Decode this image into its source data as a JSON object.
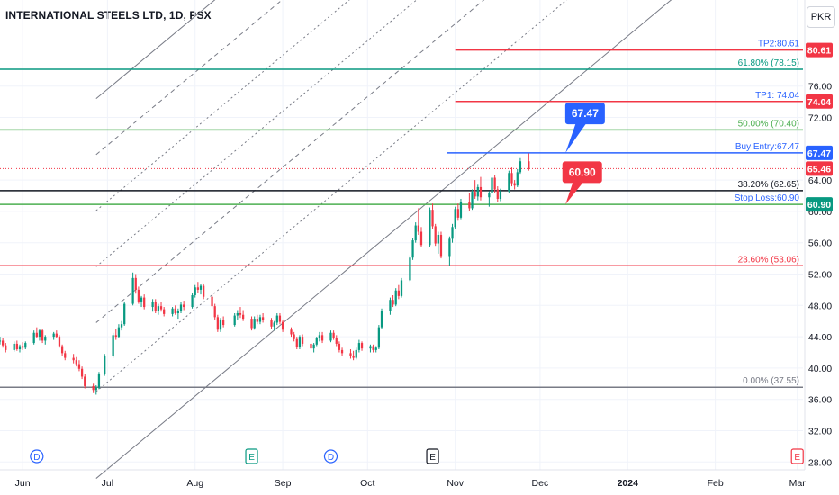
{
  "header": {
    "symbol_title": "INTERNATIONAL STEELS LTD, 1D, PSX",
    "currency": "PKR"
  },
  "chart_data": {
    "type": "candlestick",
    "symbol": "INTERNATIONAL STEELS LTD",
    "interval": "1D",
    "exchange": "PSX",
    "currency": "PKR",
    "y_axis": {
      "ticks": [
        28.0,
        32.0,
        36.0,
        40.0,
        44.0,
        48.0,
        52.0,
        56.0,
        60.0,
        64.0,
        72.0,
        76.0
      ],
      "range": [
        27.0,
        87.0
      ]
    },
    "x_axis": {
      "range": [
        "2023-05-24",
        "2024-03-03"
      ],
      "ticks": [
        {
          "label": "Jun",
          "date": "2023-06-01"
        },
        {
          "label": "Jul",
          "date": "2023-07-01"
        },
        {
          "label": "Aug",
          "date": "2023-08-01"
        },
        {
          "label": "Sep",
          "date": "2023-09-01"
        },
        {
          "label": "Oct",
          "date": "2023-10-01"
        },
        {
          "label": "Nov",
          "date": "2023-11-01"
        },
        {
          "label": "Dec",
          "date": "2023-12-01"
        },
        {
          "label": "2024",
          "date": "2024-01-01"
        },
        {
          "label": "Feb",
          "date": "2024-02-01"
        },
        {
          "label": "Mar",
          "date": "2024-03-01"
        }
      ]
    },
    "colors": {
      "up": "#089981",
      "down": "#f23645",
      "blue": "#2962ff",
      "fib_green": "#4caf50",
      "fib_teal": "#089981",
      "dark": "#131722",
      "gray": "#787b86"
    },
    "horizontal_levels": [
      {
        "price": 80.61,
        "label": "TP2:80.61",
        "label_color": "#2962ff",
        "line_color": "#f23645",
        "badge": "80.61",
        "badge_color": "#f23645",
        "start": "2023-11-01"
      },
      {
        "price": 78.15,
        "label": "61.80% (78.15)",
        "label_color": "#089981",
        "line_color": "#089981",
        "start": "2023-05-24"
      },
      {
        "price": 74.04,
        "label": "TP1: 74.04",
        "label_color": "#2962ff",
        "line_color": "#f23645",
        "badge": "74.04",
        "badge_color": "#f23645",
        "start": "2023-11-01"
      },
      {
        "price": 70.4,
        "label": "50.00% (70.40)",
        "label_color": "#4caf50",
        "line_color": "#4caf50",
        "start": "2023-05-24"
      },
      {
        "price": 67.47,
        "label": "Buy Entry:67.47",
        "label_color": "#2962ff",
        "line_color": "#2962ff",
        "badge": "67.47",
        "badge_color": "#2962ff",
        "start": "2023-10-29"
      },
      {
        "price": 65.46,
        "label": "",
        "label_color": "#f23645",
        "line_color": "#f23645",
        "dotted": true,
        "badge": "65.46",
        "badge_color": "#f23645",
        "start": "2023-05-24"
      },
      {
        "price": 62.65,
        "label": "38.20% (62.65)",
        "label_color": "#131722",
        "line_color": "#131722",
        "start": "2023-05-24"
      },
      {
        "price": 60.9,
        "label": "Stop Loss:60.90",
        "label_color": "#2962ff",
        "line_color": "#4caf50",
        "badge": "60.90",
        "badge_color": "#089981",
        "start": "2023-05-24"
      },
      {
        "price": 53.06,
        "label": "23.60% (53.06)",
        "label_color": "#f23645",
        "line_color": "#f23645",
        "start": "2023-05-24"
      },
      {
        "price": 37.55,
        "label": "0.00% (37.55)",
        "label_color": "#787b86",
        "line_color": "#787b86",
        "start": "2023-05-24"
      }
    ],
    "callouts": [
      {
        "text": "67.47",
        "color": "#2962ff",
        "anchor_date": "2023-12-10",
        "anchor_price": 67.47,
        "box_date": "2023-12-15",
        "box_price": 72.5
      },
      {
        "text": "60.90",
        "color": "#f23645",
        "anchor_date": "2023-12-10",
        "anchor_price": 60.9,
        "box_date": "2023-12-14",
        "box_price": 65.0
      }
    ],
    "channel": {
      "start": {
        "date": "2023-06-27",
        "price": 37.0
      },
      "end_date": "2024-03-03",
      "slope_per_day": 0.3005,
      "lines": [
        {
          "offset": 37.4,
          "style": "solid"
        },
        {
          "offset": 30.25,
          "style": "dashed"
        },
        {
          "offset": 23.1,
          "style": "dotted"
        },
        {
          "offset": 15.95,
          "style": "dotted"
        },
        {
          "offset": 8.8,
          "style": "dashed"
        },
        {
          "offset": 0.0,
          "style": "dotted"
        },
        {
          "offset": -11.1,
          "style": "solid"
        }
      ]
    },
    "events": [
      {
        "type": "D",
        "date": "2023-06-06",
        "color": "#2962ff"
      },
      {
        "type": "E",
        "date": "2023-08-21",
        "color": "#089981"
      },
      {
        "type": "D",
        "date": "2023-09-18",
        "color": "#2962ff"
      },
      {
        "type": "E",
        "date": "2023-10-24",
        "color": "#131722"
      },
      {
        "type": "E",
        "date": "2024-03-01",
        "color": "#f23645"
      }
    ],
    "ohlc": [
      [
        "2023-05-24",
        43.5,
        44.0,
        43.0,
        43.5
      ],
      [
        "2023-05-25",
        43.5,
        43.8,
        42.6,
        42.9
      ],
      [
        "2023-05-26",
        42.9,
        43.2,
        42.0,
        42.3
      ],
      [
        "2023-05-29",
        42.3,
        43.4,
        42.1,
        43.1
      ],
      [
        "2023-05-30",
        43.1,
        43.5,
        42.2,
        42.4
      ],
      [
        "2023-05-31",
        42.4,
        43.0,
        42.0,
        42.8
      ],
      [
        "2023-06-01",
        42.8,
        43.3,
        42.3,
        42.6
      ],
      [
        "2023-06-02",
        42.6,
        43.4,
        42.4,
        43.2
      ],
      [
        "2023-06-05",
        43.2,
        44.8,
        43.0,
        44.5
      ],
      [
        "2023-06-06",
        44.5,
        45.2,
        43.8,
        44.0
      ],
      [
        "2023-06-07",
        44.0,
        45.0,
        43.5,
        44.8
      ],
      [
        "2023-06-08",
        44.8,
        45.0,
        43.2,
        43.5
      ],
      [
        "2023-06-09",
        43.5,
        44.2,
        43.0,
        44.0
      ],
      [
        "2023-06-12",
        44.0,
        44.6,
        43.6,
        44.4
      ],
      [
        "2023-06-13",
        44.4,
        44.8,
        43.8,
        44.0
      ],
      [
        "2023-06-14",
        44.0,
        44.2,
        42.6,
        42.8
      ],
      [
        "2023-06-15",
        42.8,
        43.0,
        41.6,
        41.9
      ],
      [
        "2023-06-16",
        41.9,
        42.2,
        41.0,
        41.3
      ],
      [
        "2023-06-19",
        41.3,
        41.8,
        40.6,
        41.0
      ],
      [
        "2023-06-20",
        41.0,
        41.4,
        40.2,
        40.5
      ],
      [
        "2023-06-21",
        40.5,
        41.0,
        39.6,
        39.9
      ],
      [
        "2023-06-22",
        39.9,
        40.2,
        38.6,
        38.9
      ],
      [
        "2023-06-23",
        38.9,
        39.2,
        37.4,
        37.7
      ],
      [
        "2023-06-26",
        37.7,
        38.0,
        36.8,
        37.2
      ],
      [
        "2023-06-27",
        37.2,
        37.8,
        36.6,
        37.5
      ],
      [
        "2023-06-28",
        37.5,
        39.5,
        37.3,
        39.2
      ],
      [
        "2023-06-30",
        39.2,
        41.8,
        39.0,
        41.5
      ],
      [
        "2023-07-03",
        41.5,
        44.5,
        41.3,
        44.2
      ],
      [
        "2023-07-04",
        44.2,
        45.0,
        43.6,
        44.0
      ],
      [
        "2023-07-05",
        44.0,
        45.6,
        43.8,
        45.2
      ],
      [
        "2023-07-06",
        45.2,
        46.0,
        44.8,
        45.6
      ],
      [
        "2023-07-07",
        45.6,
        48.5,
        45.4,
        48.2
      ],
      [
        "2023-07-10",
        48.2,
        52.2,
        48.0,
        51.5
      ],
      [
        "2023-07-11",
        51.5,
        52.0,
        49.5,
        50.0
      ],
      [
        "2023-07-12",
        50.0,
        50.4,
        48.2,
        48.5
      ],
      [
        "2023-07-13",
        48.5,
        49.2,
        47.8,
        49.0
      ],
      [
        "2023-07-14",
        49.0,
        49.4,
        47.5,
        47.8
      ],
      [
        "2023-07-17",
        47.8,
        48.8,
        47.2,
        48.4
      ],
      [
        "2023-07-18",
        48.4,
        48.8,
        47.0,
        47.3
      ],
      [
        "2023-07-19",
        47.3,
        48.2,
        46.8,
        47.9
      ],
      [
        "2023-07-20",
        47.9,
        48.4,
        47.2,
        47.5
      ],
      [
        "2023-07-21",
        47.5,
        47.8,
        46.6,
        46.9
      ],
      [
        "2023-07-24",
        46.9,
        47.8,
        46.6,
        47.6
      ],
      [
        "2023-07-25",
        47.6,
        48.0,
        46.8,
        47.0
      ],
      [
        "2023-07-26",
        47.0,
        47.6,
        46.3,
        47.3
      ],
      [
        "2023-07-27",
        47.3,
        48.4,
        47.0,
        48.1
      ],
      [
        "2023-07-28",
        48.1,
        48.6,
        47.4,
        47.8
      ],
      [
        "2023-07-31",
        47.8,
        49.6,
        47.6,
        49.3
      ],
      [
        "2023-08-01",
        49.3,
        50.6,
        49.0,
        50.3
      ],
      [
        "2023-08-02",
        50.3,
        51.0,
        49.6,
        50.0
      ],
      [
        "2023-08-03",
        50.0,
        50.8,
        49.4,
        50.5
      ],
      [
        "2023-08-04",
        50.5,
        50.8,
        48.8,
        49.1
      ],
      [
        "2023-08-07",
        49.1,
        49.4,
        47.6,
        47.9
      ],
      [
        "2023-08-08",
        47.9,
        48.2,
        46.2,
        46.5
      ],
      [
        "2023-08-09",
        46.5,
        46.8,
        44.6,
        44.9
      ],
      [
        "2023-08-10",
        44.9,
        46.4,
        44.6,
        46.1
      ],
      [
        "2023-08-11",
        46.1,
        46.6,
        45.2,
        45.5
      ],
      [
        "2023-08-15",
        45.5,
        47.0,
        45.3,
        46.7
      ],
      [
        "2023-08-16",
        46.7,
        47.4,
        46.2,
        47.0
      ],
      [
        "2023-08-17",
        47.0,
        47.8,
        46.4,
        46.8
      ],
      [
        "2023-08-18",
        46.8,
        47.4,
        46.0,
        46.3
      ],
      [
        "2023-08-21",
        46.3,
        46.6,
        44.8,
        45.1
      ],
      [
        "2023-08-22",
        45.1,
        46.6,
        44.9,
        46.3
      ],
      [
        "2023-08-23",
        46.3,
        46.8,
        45.6,
        45.9
      ],
      [
        "2023-08-24",
        45.9,
        46.8,
        45.6,
        46.5
      ],
      [
        "2023-08-25",
        46.5,
        47.0,
        45.8,
        46.1
      ],
      [
        "2023-08-28",
        46.1,
        46.4,
        45.0,
        45.3
      ],
      [
        "2023-08-29",
        45.3,
        46.0,
        44.8,
        45.8
      ],
      [
        "2023-08-30",
        45.8,
        47.0,
        45.5,
        46.7
      ],
      [
        "2023-08-31",
        46.7,
        47.0,
        45.6,
        45.9
      ],
      [
        "2023-09-01",
        45.9,
        46.2,
        44.6,
        44.9
      ],
      [
        "2023-09-04",
        44.9,
        45.2,
        44.0,
        44.3
      ],
      [
        "2023-09-05",
        44.3,
        44.6,
        43.4,
        43.7
      ],
      [
        "2023-09-06",
        43.7,
        44.0,
        42.4,
        42.7
      ],
      [
        "2023-09-07",
        42.7,
        44.2,
        42.4,
        44.0
      ],
      [
        "2023-09-08",
        44.0,
        44.3,
        42.8,
        43.1
      ],
      [
        "2023-09-11",
        43.1,
        43.4,
        42.2,
        42.5
      ],
      [
        "2023-09-12",
        42.5,
        43.2,
        42.0,
        43.0
      ],
      [
        "2023-09-13",
        43.0,
        44.0,
        42.8,
        43.8
      ],
      [
        "2023-09-14",
        43.8,
        44.6,
        43.4,
        44.2
      ],
      [
        "2023-09-15",
        44.2,
        44.6,
        43.2,
        43.5
      ],
      [
        "2023-09-18",
        43.5,
        44.8,
        43.3,
        44.5
      ],
      [
        "2023-09-19",
        44.5,
        44.8,
        43.6,
        43.9
      ],
      [
        "2023-09-20",
        43.9,
        44.2,
        42.8,
        43.1
      ],
      [
        "2023-09-21",
        43.1,
        43.4,
        42.0,
        42.3
      ],
      [
        "2023-09-22",
        42.3,
        42.6,
        41.6,
        41.9
      ],
      [
        "2023-09-25",
        41.9,
        42.4,
        41.2,
        41.6
      ],
      [
        "2023-09-26",
        41.6,
        42.2,
        41.0,
        41.3
      ],
      [
        "2023-09-27",
        41.3,
        42.6,
        41.1,
        42.3
      ],
      [
        "2023-09-28",
        42.3,
        43.6,
        42.0,
        43.2
      ],
      [
        "2023-09-29",
        43.2,
        43.4,
        42.2,
        42.5
      ],
      [
        "2023-10-02",
        42.5,
        43.0,
        42.0,
        42.8
      ],
      [
        "2023-10-03",
        42.8,
        43.0,
        42.0,
        42.3
      ],
      [
        "2023-10-04",
        42.3,
        42.8,
        42.0,
        42.6
      ],
      [
        "2023-10-05",
        42.6,
        45.5,
        42.4,
        45.2
      ],
      [
        "2023-10-06",
        45.2,
        47.6,
        45.0,
        47.3
      ],
      [
        "2023-10-09",
        47.3,
        49.0,
        46.8,
        48.7
      ],
      [
        "2023-10-10",
        48.7,
        49.3,
        47.8,
        48.1
      ],
      [
        "2023-10-11",
        48.1,
        50.2,
        47.9,
        49.9
      ],
      [
        "2023-10-12",
        49.9,
        50.6,
        48.8,
        49.2
      ],
      [
        "2023-10-13",
        49.2,
        51.5,
        49.0,
        51.2
      ],
      [
        "2023-10-16",
        51.2,
        54.4,
        51.0,
        54.1
      ],
      [
        "2023-10-17",
        54.1,
        56.6,
        53.8,
        56.3
      ],
      [
        "2023-10-18",
        56.3,
        58.6,
        56.0,
        58.2
      ],
      [
        "2023-10-19",
        58.2,
        60.4,
        57.0,
        57.4
      ],
      [
        "2023-10-20",
        57.4,
        58.0,
        55.4,
        55.7
      ],
      [
        "2023-10-23",
        55.7,
        60.5,
        55.4,
        60.2
      ],
      [
        "2023-10-24",
        60.2,
        61.0,
        57.8,
        58.1
      ],
      [
        "2023-10-25",
        58.1,
        58.4,
        55.6,
        55.9
      ],
      [
        "2023-10-26",
        55.9,
        57.4,
        54.6,
        57.0
      ],
      [
        "2023-10-27",
        57.0,
        57.4,
        54.0,
        54.3
      ],
      [
        "2023-10-30",
        54.3,
        56.8,
        53.0,
        56.5
      ],
      [
        "2023-10-31",
        56.5,
        58.4,
        56.0,
        58.0
      ],
      [
        "2023-11-01",
        58.0,
        60.6,
        57.8,
        60.3
      ],
      [
        "2023-11-02",
        60.3,
        61.0,
        58.8,
        59.2
      ],
      [
        "2023-11-03",
        59.2,
        61.6,
        59.0,
        61.2
      ],
      [
        "2023-11-06",
        61.2,
        62.4,
        60.0,
        60.4
      ],
      [
        "2023-11-07",
        60.4,
        62.8,
        60.2,
        62.5
      ],
      [
        "2023-11-08",
        62.5,
        64.0,
        61.6,
        61.9
      ],
      [
        "2023-11-09",
        61.9,
        63.4,
        61.4,
        63.1
      ],
      [
        "2023-11-10",
        63.1,
        64.4,
        61.4,
        61.8
      ],
      [
        "2023-11-13",
        61.8,
        62.6,
        60.6,
        62.3
      ],
      [
        "2023-11-14",
        62.3,
        64.8,
        62.1,
        64.3
      ],
      [
        "2023-11-15",
        64.3,
        64.6,
        62.4,
        62.8
      ],
      [
        "2023-11-16",
        62.8,
        63.2,
        61.2,
        61.6
      ],
      [
        "2023-11-17",
        61.6,
        62.9,
        61.3,
        62.6
      ],
      [
        "2023-11-20",
        62.6,
        65.2,
        62.4,
        64.9
      ],
      [
        "2023-11-21",
        64.9,
        65.6,
        63.2,
        63.6
      ],
      [
        "2023-11-22",
        63.6,
        64.0,
        62.8,
        63.3
      ],
      [
        "2023-11-23",
        63.3,
        65.4,
        63.1,
        65.0
      ],
      [
        "2023-11-24",
        65.0,
        66.8,
        64.8,
        66.4
      ],
      [
        "2023-11-27",
        66.4,
        67.4,
        65.2,
        65.46
      ]
    ]
  }
}
